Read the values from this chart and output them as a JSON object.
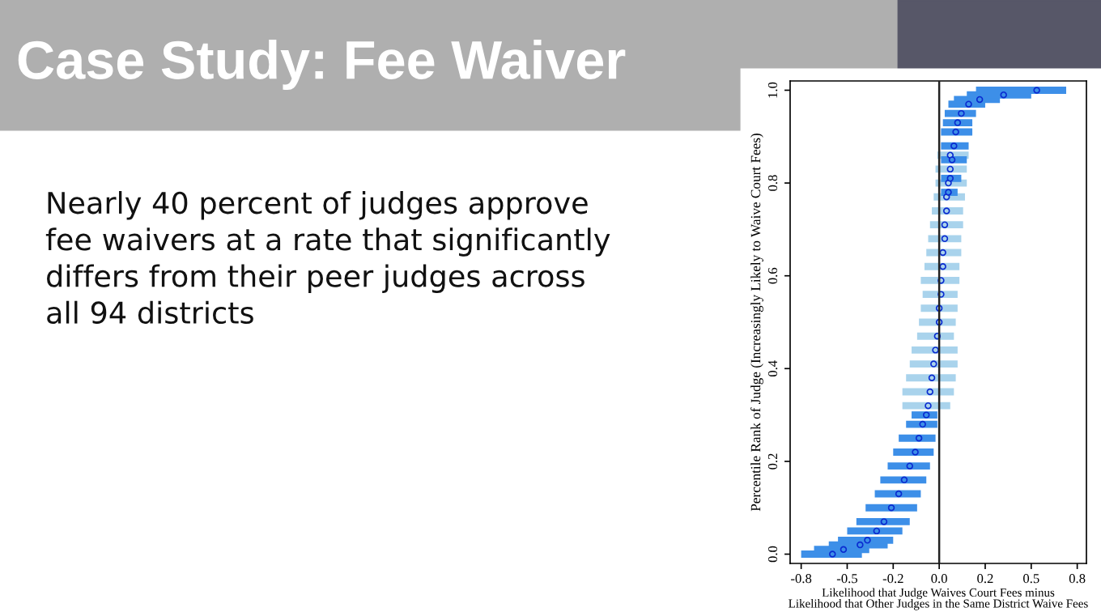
{
  "chart_data": {
    "type": "scatter",
    "title": "Case Study: Fee Waiver",
    "annotations": [
      "Nearly 40 percent of judges approve\nfee waivers at a rate that significantly\ndiffers from their peer judges across\nall 94 districts"
    ],
    "xlabel": "Likelihood that Judge Waives Court Fees minus\nLikelihood that Other Judges in the Same District Waive Fees",
    "ylabel": "Percentile Rank of Judge (Increasingly Likely to Waive Court Fees)",
    "xlim": [
      -0.81,
      0.8
    ],
    "ylim": [
      -0.02,
      1.02
    ],
    "xticks": [
      {
        "value": -0.75,
        "label": "-0.8"
      },
      {
        "value": -0.5,
        "label": "-0.5"
      },
      {
        "value": -0.25,
        "label": "-0.2"
      },
      {
        "value": 0,
        "label": "0.0"
      },
      {
        "value": 0.25,
        "label": "0.2"
      },
      {
        "value": 0.5,
        "label": "0.5"
      },
      {
        "value": 0.75,
        "label": "0.8"
      }
    ],
    "yticks": [
      {
        "value": 0,
        "label": "0.0"
      },
      {
        "value": 0.2,
        "label": "0.2"
      },
      {
        "value": 0.4,
        "label": "0.4"
      },
      {
        "value": 0.6,
        "label": "0.6"
      },
      {
        "value": 0.8,
        "label": "0.8"
      },
      {
        "value": 1,
        "label": "1.0"
      }
    ],
    "grid": false,
    "legend": false,
    "marker": "circle",
    "ref_lines": [
      {
        "axis": "x",
        "value": 0,
        "color": "#222222"
      }
    ],
    "series": [
      {
        "color": "#a9d3ec",
        "x": [
          -0.06,
          -0.05,
          -0.04,
          -0.03,
          -0.02,
          -0.01,
          0.0,
          0.0,
          0.01,
          0.01,
          0.02,
          0.02,
          0.03,
          0.03,
          0.04,
          0.04,
          0.05,
          0.06,
          0.06
        ],
        "values": [
          0.32,
          0.35,
          0.38,
          0.41,
          0.44,
          0.47,
          0.5,
          0.53,
          0.56,
          0.59,
          0.62,
          0.65,
          0.68,
          0.71,
          0.74,
          0.77,
          0.8,
          0.83,
          0.86
        ],
        "xerrors": [
          [
            -0.2,
            0.06
          ],
          [
            -0.2,
            0.08
          ],
          [
            -0.18,
            0.09
          ],
          [
            -0.16,
            0.1
          ],
          [
            -0.15,
            0.1
          ],
          [
            -0.12,
            0.08
          ],
          [
            -0.11,
            0.09
          ],
          [
            -0.1,
            0.1
          ],
          [
            -0.09,
            0.1
          ],
          [
            -0.1,
            0.11
          ],
          [
            -0.08,
            0.11
          ],
          [
            -0.07,
            0.12
          ],
          [
            -0.06,
            0.12
          ],
          [
            -0.05,
            0.13
          ],
          [
            -0.04,
            0.13
          ],
          [
            -0.03,
            0.14
          ],
          [
            -0.02,
            0.15
          ],
          [
            -0.02,
            0.15
          ],
          [
            -0.01,
            0.16
          ]
        ]
      },
      {
        "color": "#3d8fe8",
        "x": [
          -0.58,
          -0.52,
          -0.43,
          -0.39,
          -0.34,
          -0.3,
          -0.26,
          -0.22,
          -0.19,
          -0.16,
          -0.13,
          -0.11,
          -0.09,
          -0.07
        ],
        "values": [
          0.0,
          0.01,
          0.02,
          0.03,
          0.05,
          0.07,
          0.1,
          0.13,
          0.16,
          0.19,
          0.22,
          0.25,
          0.28,
          0.3
        ],
        "xerrors": [
          [
            -0.75,
            -0.42
          ],
          [
            -0.68,
            -0.38
          ],
          [
            -0.6,
            -0.28
          ],
          [
            -0.55,
            -0.25
          ],
          [
            -0.5,
            -0.2
          ],
          [
            -0.45,
            -0.16
          ],
          [
            -0.4,
            -0.12
          ],
          [
            -0.35,
            -0.1
          ],
          [
            -0.32,
            -0.07
          ],
          [
            -0.28,
            -0.05
          ],
          [
            -0.25,
            -0.03
          ],
          [
            -0.22,
            -0.02
          ],
          [
            -0.18,
            -0.01
          ],
          [
            -0.15,
            -0.01
          ]
        ]
      },
      {
        "color": "#3d8fe8",
        "x": [
          0.05,
          0.06,
          0.07,
          0.08,
          0.09,
          0.1,
          0.12,
          0.16,
          0.22,
          0.35,
          0.53
        ],
        "values": [
          0.78,
          0.81,
          0.85,
          0.88,
          0.91,
          0.93,
          0.95,
          0.97,
          0.98,
          0.99,
          1.0
        ],
        "xerrors": [
          [
            0.01,
            0.1
          ],
          [
            0.01,
            0.12
          ],
          [
            0.01,
            0.15
          ],
          [
            0.01,
            0.16
          ],
          [
            0.01,
            0.18
          ],
          [
            0.02,
            0.18
          ],
          [
            0.03,
            0.2
          ],
          [
            0.05,
            0.25
          ],
          [
            0.08,
            0.33
          ],
          [
            0.15,
            0.5
          ],
          [
            0.2,
            0.69
          ]
        ]
      }
    ]
  }
}
